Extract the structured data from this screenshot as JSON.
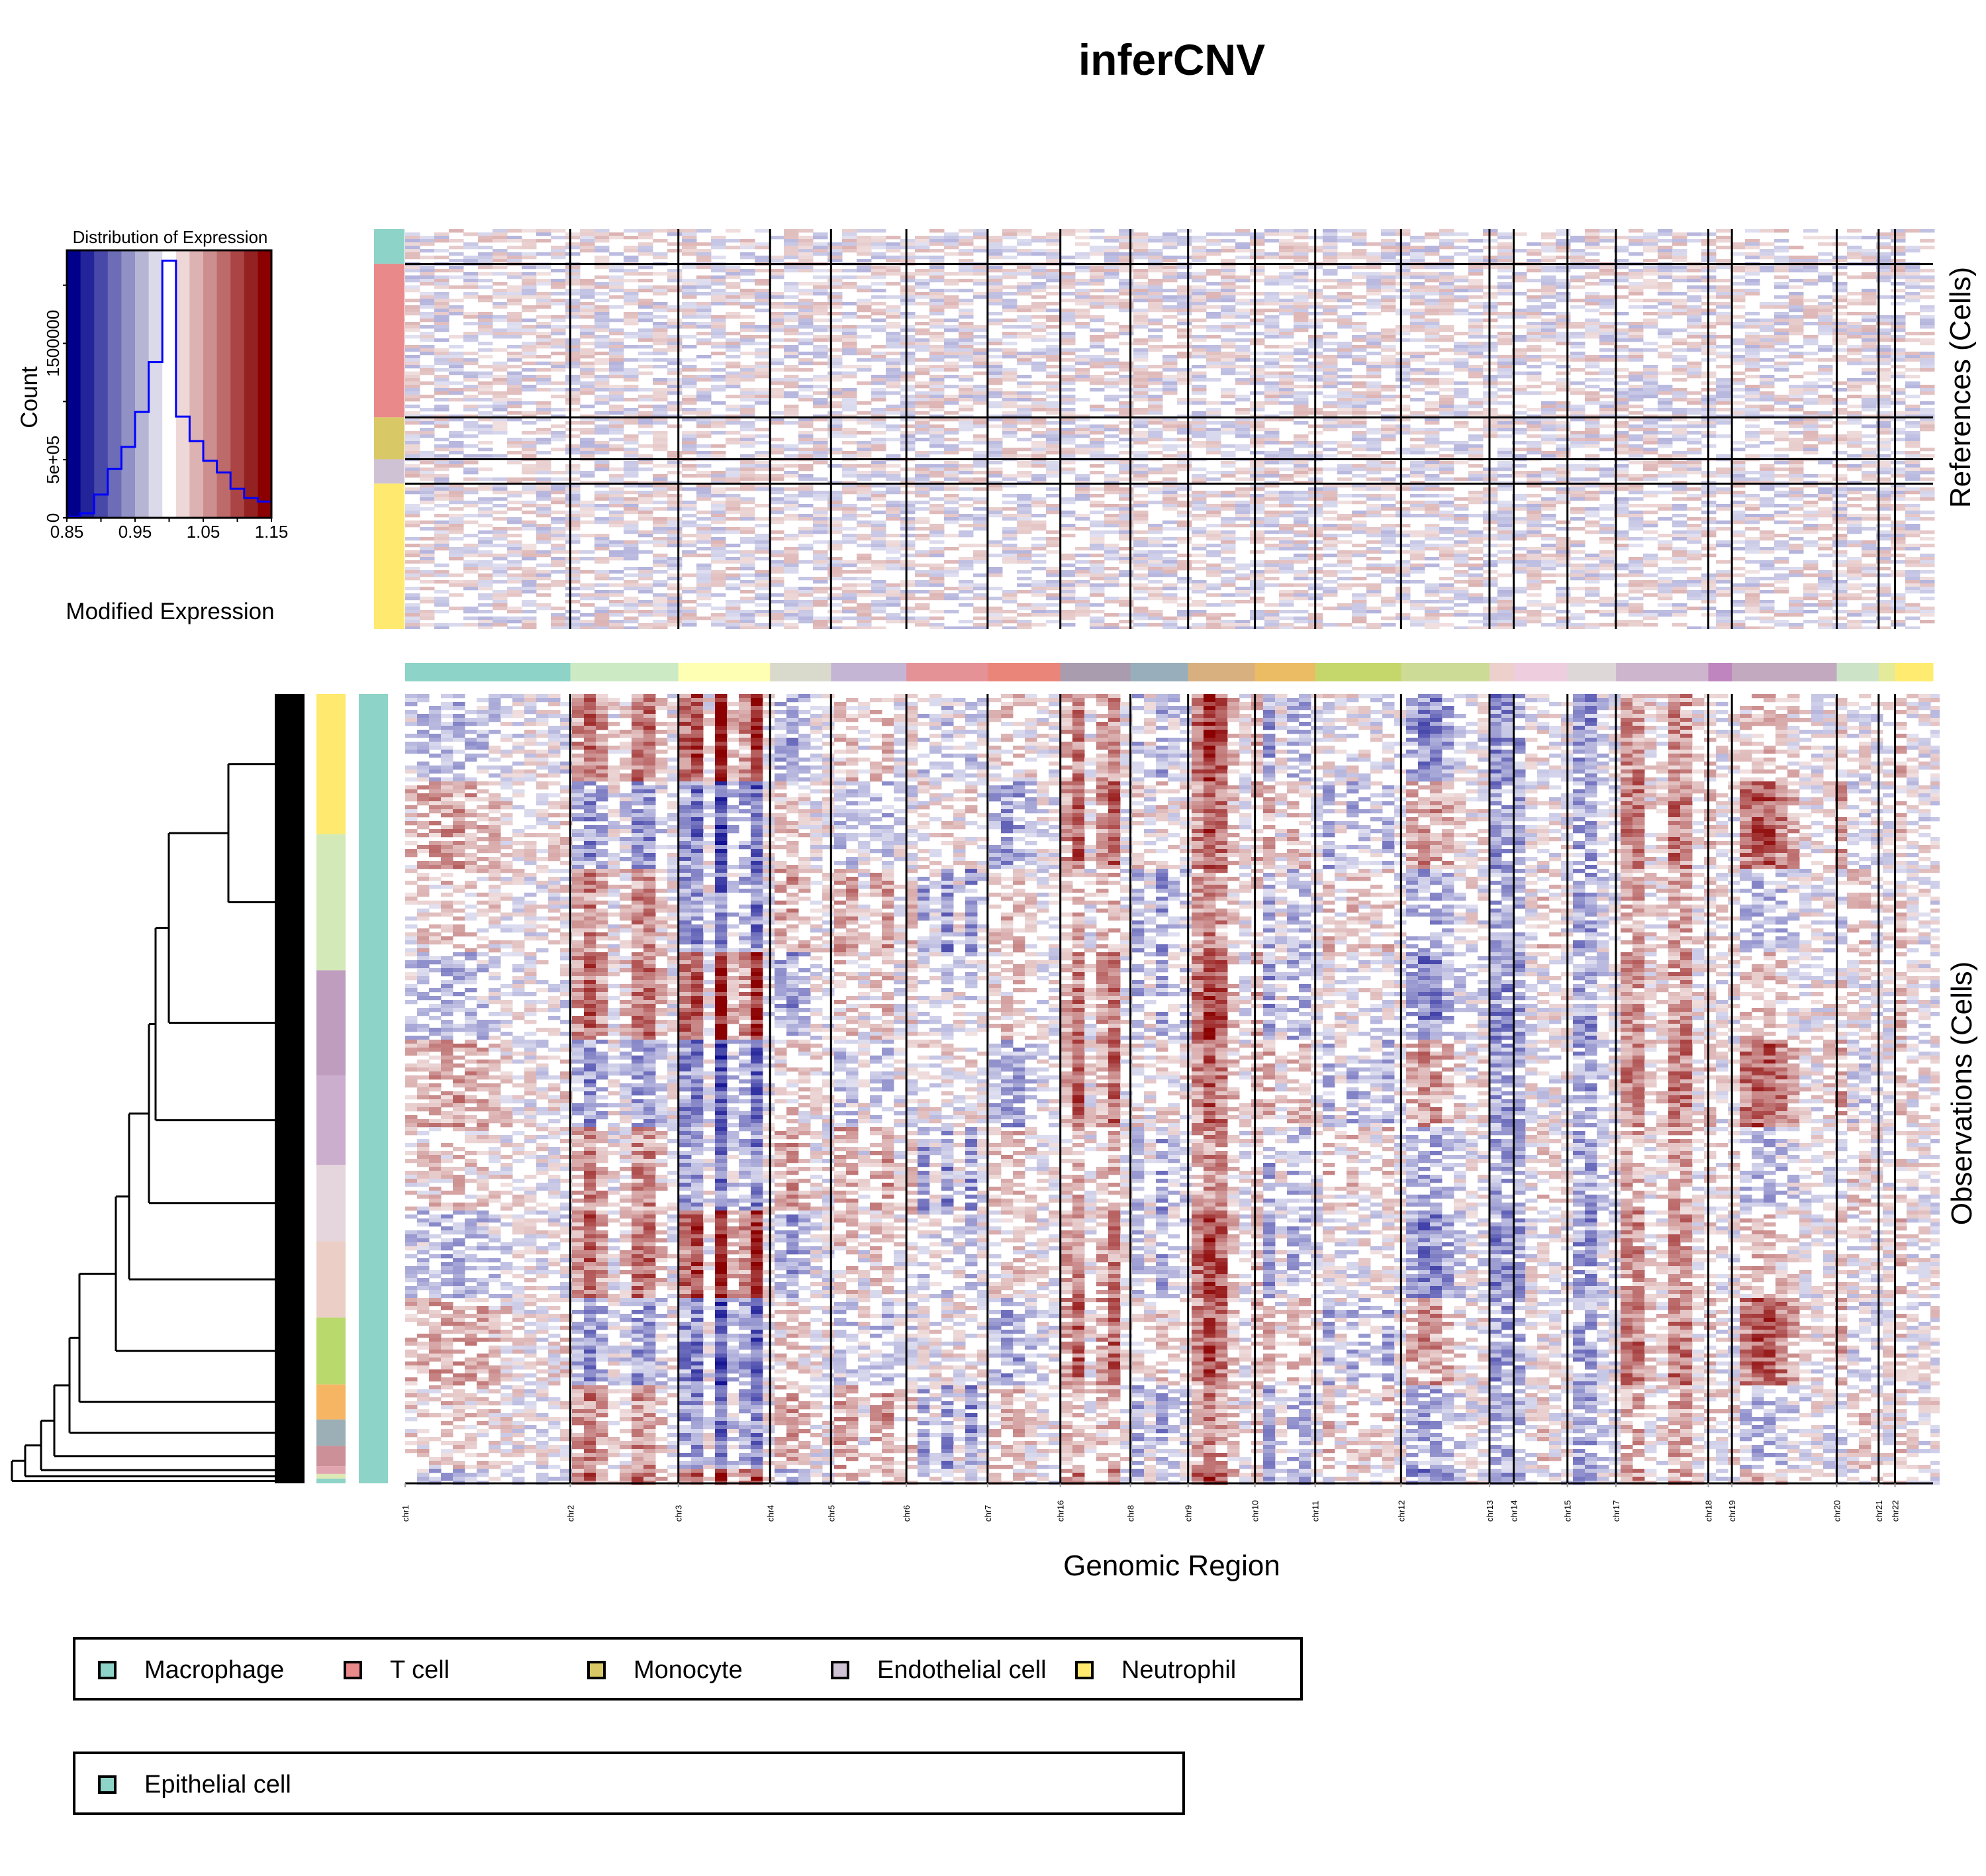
{
  "title": "inferCNV",
  "right_labels": {
    "references": "References (Cells)",
    "observations": "Observations (Cells)"
  },
  "x_axis_label": "Genomic Region",
  "chart_data": [
    {
      "type": "bar",
      "name": "histogram",
      "title": "Distribution of Expression",
      "xlabel": "Modified Expression",
      "ylabel": "Count",
      "xlim": [
        0.85,
        1.15
      ],
      "ylim": [
        0,
        2300000
      ],
      "x_ticks": [
        0.85,
        0.9,
        0.95,
        1.0,
        1.05,
        1.1,
        1.15
      ],
      "x_tick_labels": [
        "0.85",
        "",
        "0.95",
        "",
        "1.05",
        "",
        "1.15"
      ],
      "y_ticks": [
        0,
        500000,
        1000000,
        1500000,
        2000000
      ],
      "y_tick_labels": [
        "0",
        "5e+05",
        "",
        "1500000",
        ""
      ],
      "bin_edges": [
        0.85,
        0.87,
        0.89,
        0.91,
        0.93,
        0.95,
        0.97,
        0.99,
        1.01,
        1.03,
        1.05,
        1.07,
        1.09,
        1.11,
        1.13,
        1.15
      ],
      "values": [
        10000,
        40000,
        200000,
        420000,
        610000,
        910000,
        1340000,
        2210000,
        870000,
        660000,
        490000,
        390000,
        250000,
        170000,
        140000
      ],
      "band_colors": [
        "#00008B",
        "#24249A",
        "#4848A8",
        "#6D6DB7",
        "#9191C5",
        "#B6B6D4",
        "#DADAEB",
        "#FFFFFF",
        "#EDD7D7",
        "#DDB2B2",
        "#CC8E8E",
        "#BC6A6A",
        "#AB4545",
        "#942222",
        "#8B0000"
      ],
      "line_color": "#0000FF"
    },
    {
      "type": "heatmap",
      "name": "cnv-heatmap",
      "chromosomes": [
        "chr1",
        "chr2",
        "chr3",
        "chr4",
        "chr5",
        "chr6",
        "chr7",
        "chr16",
        "chr8",
        "chr9",
        "chr10",
        "chr11",
        "chr12",
        "chr13",
        "chr14",
        "chr15",
        "chr17",
        "chr18",
        "chr19",
        "chr20",
        "chr21",
        "chr22"
      ],
      "chromosome_widths": [
        252,
        165,
        140,
        93,
        115,
        124,
        111,
        107,
        88,
        102,
        92,
        131,
        135,
        37,
        82,
        74,
        141,
        36,
        160,
        64,
        25,
        58
      ],
      "chromosome_colors": [
        "#8DD3C7",
        "#CCEBC5",
        "#FFFFB3",
        "#D9D9CC",
        "#C5B5D5",
        "#E59297",
        "#EA8579",
        "#A89CAE",
        "#98AFBB",
        "#D8B07F",
        "#EBBC63",
        "#C5D66A",
        "#CCDB96",
        "#EDD0CB",
        "#EECEDE",
        "#DED7D8",
        "#CEB5CE",
        "#BE85BF",
        "#C3A9BF",
        "#CCE3C8",
        "#E3EA9A",
        "#FFEB6F"
      ],
      "reference_groups": [
        {
          "name": "Macrophage",
          "color": "#8DD3C7",
          "size": 5
        },
        {
          "name": "T cell",
          "color": "#E9898A",
          "size": 22
        },
        {
          "name": "Monocyte",
          "color": "#D9C866",
          "size": 6
        },
        {
          "name": "Endothelial cell",
          "color": "#D0C2D5",
          "size": 3.5
        },
        {
          "name": "Neutrophil",
          "color": "#FFE96E",
          "size": 22
        }
      ],
      "observation_groups": [
        {
          "name": "Epithelial cell",
          "color": "#8DD3C7"
        }
      ],
      "observation_subclusters": [
        {
          "color": "#FFE96E",
          "size": 18
        },
        {
          "color": "#D3EAB8",
          "size": 17.5
        },
        {
          "color": "#BF9DBF",
          "size": 13.5
        },
        {
          "color": "#CBADCD",
          "size": 11.5
        },
        {
          "color": "#E5D5DD",
          "size": 9.8
        },
        {
          "color": "#EBCFC6",
          "size": 9.8
        },
        {
          "color": "#B9D96C",
          "size": 8.6
        },
        {
          "color": "#F6B562",
          "size": 4.5
        },
        {
          "color": "#9CAFB6",
          "size": 3.4
        },
        {
          "color": "#CC9198",
          "size": 2.6
        },
        {
          "color": "#E0A5AE",
          "size": 1.0
        },
        {
          "color": "#DDE8B6",
          "size": 0.6
        },
        {
          "color": "#8DD3C7",
          "size": 0.6
        }
      ],
      "scale": {
        "min": 0.85,
        "max": 1.15,
        "low_color": "#00008B",
        "mid_color": "#FFFFFF",
        "high_color": "#8B0000"
      }
    }
  ],
  "legends": {
    "references": [
      {
        "label": "Macrophage",
        "color": "#8DD3C7"
      },
      {
        "label": "T cell",
        "color": "#E9898A"
      },
      {
        "label": "Monocyte",
        "color": "#D9C866"
      },
      {
        "label": "Endothelial cell",
        "color": "#D0C2D5"
      },
      {
        "label": "Neutrophil",
        "color": "#FFE96E"
      }
    ],
    "observations": [
      {
        "label": "Epithelial cell",
        "color": "#8DD3C7"
      }
    ]
  }
}
